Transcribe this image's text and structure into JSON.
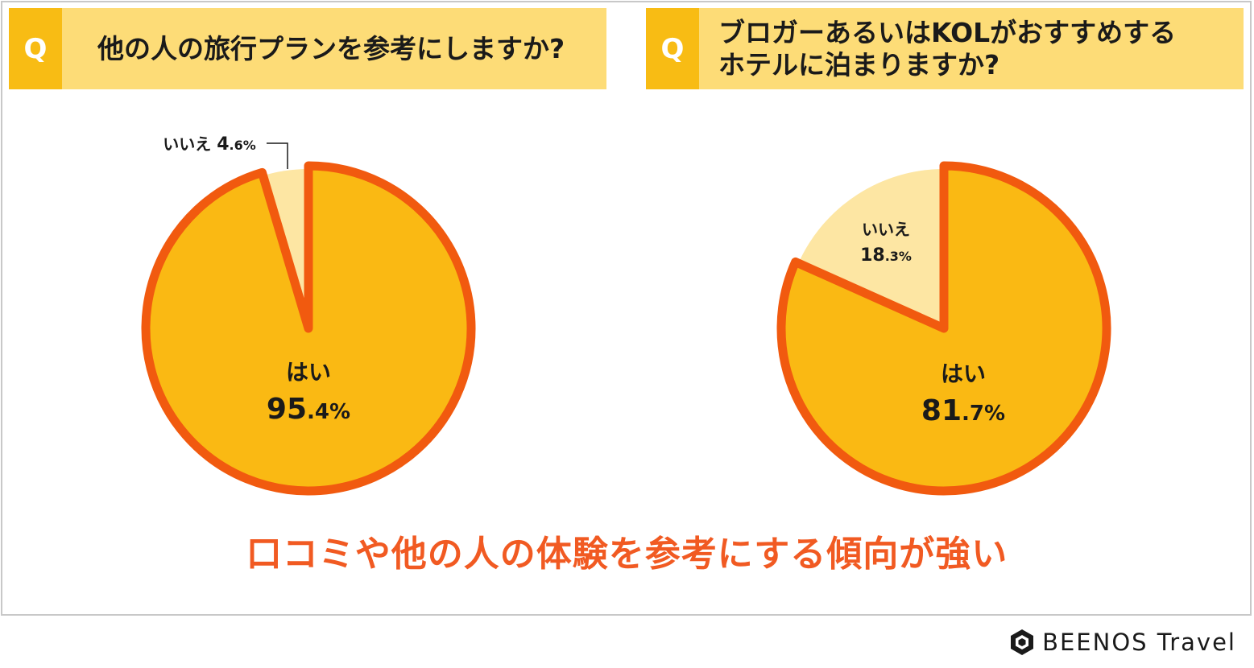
{
  "questions": [
    {
      "tag": "Q",
      "text": "他の人の旅行プランを参考にしますか?"
    },
    {
      "tag": "Q",
      "text": "ブロガーあるいはKOLがおすすめする\nホテルに泊まりますか?"
    }
  ],
  "chart_data": [
    {
      "type": "pie",
      "title": "他の人の旅行プランを参考にしますか?",
      "slices": [
        {
          "label": "はい",
          "value": 95.4,
          "int": "95",
          "dec": ".4",
          "pct": "%"
        },
        {
          "label": "いいえ",
          "value": 4.6,
          "int": "4",
          "dec": ".6",
          "pct": "%"
        }
      ]
    },
    {
      "type": "pie",
      "title": "ブロガーあるいはKOLがおすすめするホテルに泊まりますか?",
      "slices": [
        {
          "label": "はい",
          "value": 81.7,
          "int": "81",
          "dec": ".7",
          "pct": "%"
        },
        {
          "label": "いいえ",
          "value": 18.3,
          "int": "18",
          "dec": ".3",
          "pct": "%"
        }
      ]
    }
  ],
  "conclusion": "口コミや他の人の体験を参考にする傾向が強い",
  "brand": "BEENOS Travel",
  "colors": {
    "yes_fill": "#fab913",
    "no_fill": "#fde6a3",
    "outline": "#f15a0f",
    "header_bg": "#fddc77",
    "tag_bg": "#f8bc14",
    "conclusion": "#f15a22"
  }
}
